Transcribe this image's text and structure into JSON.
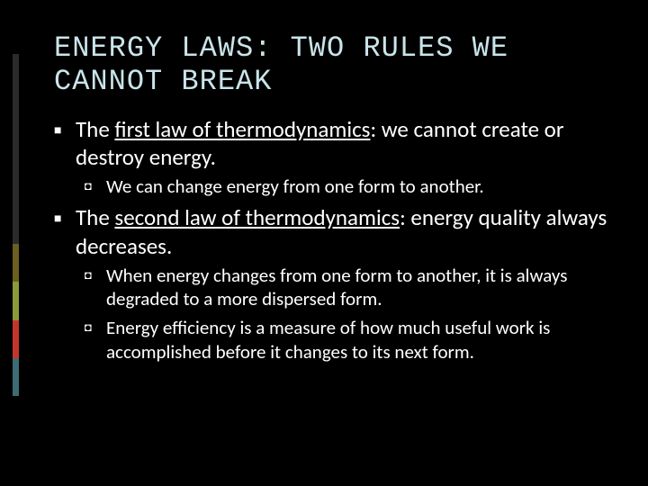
{
  "accent_colors": [
    "#2b2b2b",
    "#2b2b2b",
    "#2b2b2b",
    "#2b2b2b",
    "#2b2b2b",
    "#6a5f1f",
    "#8c9a3a",
    "#c2362c",
    "#3b6d73"
  ],
  "slide": {
    "title": "ENERGY LAWS: TWO RULES WE CANNOT BREAK",
    "bullets": [
      {
        "prefix": "The ",
        "underlined": "first law of thermodynamics",
        "suffix": ": we cannot create or destroy energy.",
        "children": [
          {
            "text": "We can change energy from one form to another."
          }
        ]
      },
      {
        "prefix": "The ",
        "underlined": "second law of thermodynamics",
        "suffix": ": energy quality always decreases.",
        "children": [
          {
            "text": "When energy changes from one form to another, it is always degraded to a more dispersed form."
          },
          {
            "text": "Energy efficiency is a measure of how much useful work is accomplished before it changes to its next form."
          }
        ]
      }
    ]
  }
}
